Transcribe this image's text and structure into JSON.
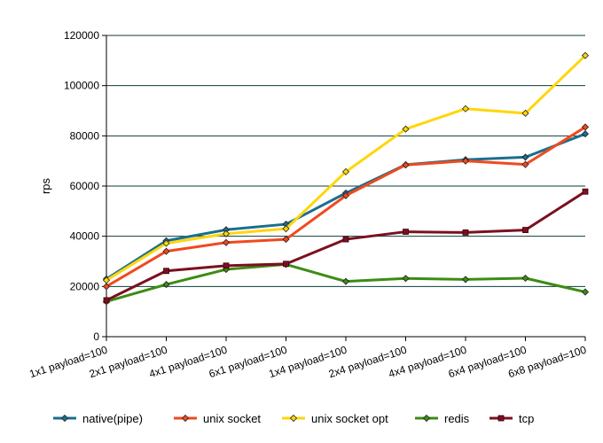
{
  "chart_data": {
    "type": "line",
    "title": "",
    "xlabel": "",
    "ylabel": "rps",
    "ylim": [
      0,
      120000
    ],
    "y_ticks": [
      0,
      20000,
      40000,
      60000,
      80000,
      100000,
      120000
    ],
    "y_tick_labels": [
      "0",
      "20000",
      "40000",
      "60000",
      "80000",
      "100000",
      "120000"
    ],
    "grid": "horizontal",
    "legend_position": "bottom",
    "categories": [
      "1x1 payload=100",
      "2x1 payload=100",
      "4x1 payload=100",
      "6x1 payload=100",
      "1x4 payload=100",
      "2x4 payload=100",
      "4x4 payload=100",
      "6x4 payload=100",
      "6x8 payload=100"
    ],
    "series": [
      {
        "name": "native(pipe)",
        "color": "#1b6e8e",
        "marker": "diamond",
        "values": [
          23000,
          38200,
          42600,
          44800,
          57200,
          68500,
          70500,
          71500,
          80800
        ]
      },
      {
        "name": "unix socket",
        "color": "#ef4a1e",
        "marker": "diamond",
        "values": [
          20000,
          34000,
          37500,
          38800,
          56200,
          68400,
          70000,
          68600,
          83500
        ]
      },
      {
        "name": "unix socket opt",
        "color": "#ffd60a",
        "marker": "diamond",
        "values": [
          22500,
          37200,
          41000,
          43000,
          65700,
          82700,
          90800,
          89000,
          112000
        ]
      },
      {
        "name": "redis",
        "color": "#3c8c14",
        "marker": "diamond",
        "values": [
          14000,
          20800,
          26800,
          28800,
          22000,
          23200,
          22800,
          23300,
          17800
        ]
      },
      {
        "name": "tcp",
        "color": "#7b1020",
        "marker": "square",
        "values": [
          14500,
          26200,
          28300,
          29000,
          38800,
          41800,
          41500,
          42500,
          57800
        ]
      }
    ]
  }
}
